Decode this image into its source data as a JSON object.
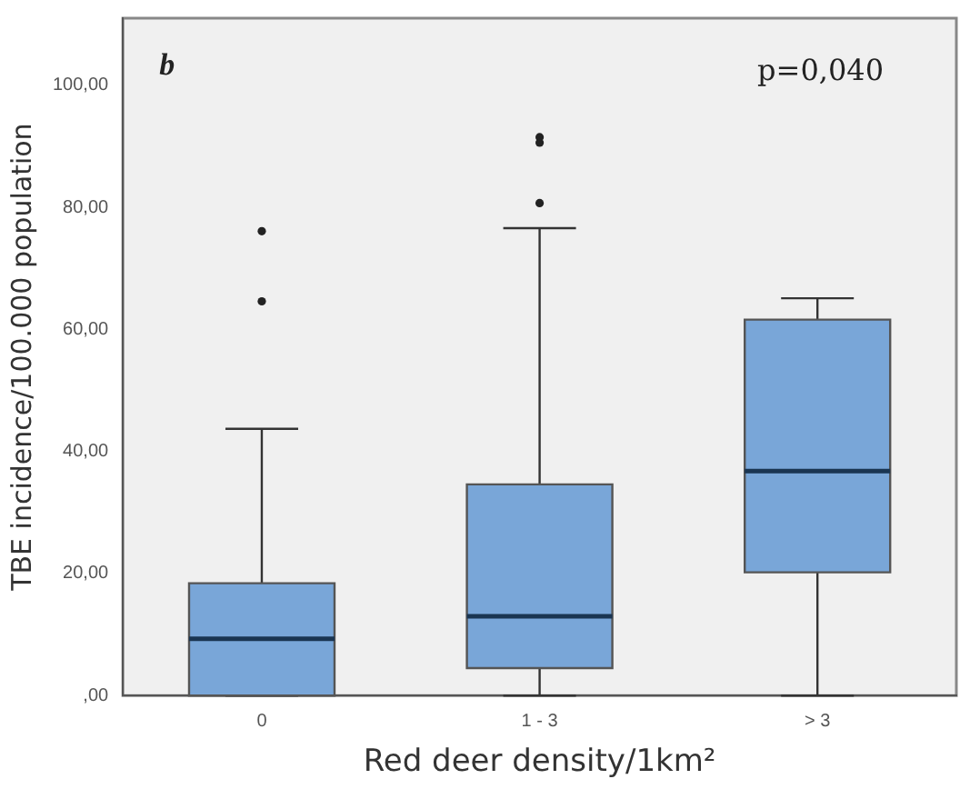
{
  "chart_data": {
    "type": "box",
    "xlabel": "Red deer density/1km²",
    "ylabel": "TBE incidence/100.000 population",
    "categories": [
      "0",
      "1 - 3",
      "> 3"
    ],
    "color": "#79a6d8",
    "boxes": [
      {
        "low": 0,
        "q1": 0,
        "median": 9.3,
        "q3": 18.4,
        "high": 43.7,
        "outliers": [
          64.6,
          76.1
        ]
      },
      {
        "low": 0,
        "q1": 4.5,
        "median": 13.0,
        "q3": 34.6,
        "high": 76.6,
        "outliers": [
          80.7,
          90.6,
          91.5
        ]
      },
      {
        "low": 0,
        "q1": 20.2,
        "median": 36.8,
        "q3": 61.6,
        "high": 65.1
      }
    ],
    "ylim": [
      0,
      111
    ],
    "yticks": [
      {
        "value": 0,
        "label": ",00"
      },
      {
        "value": 20,
        "label": "20,00"
      },
      {
        "value": 40,
        "label": "40,00"
      },
      {
        "value": 60,
        "label": "60,00"
      },
      {
        "value": 80,
        "label": "80,00"
      },
      {
        "value": 100,
        "label": "100,00"
      }
    ],
    "grid": false,
    "legend": false,
    "annotations": [
      "b",
      "p=0,040"
    ]
  }
}
